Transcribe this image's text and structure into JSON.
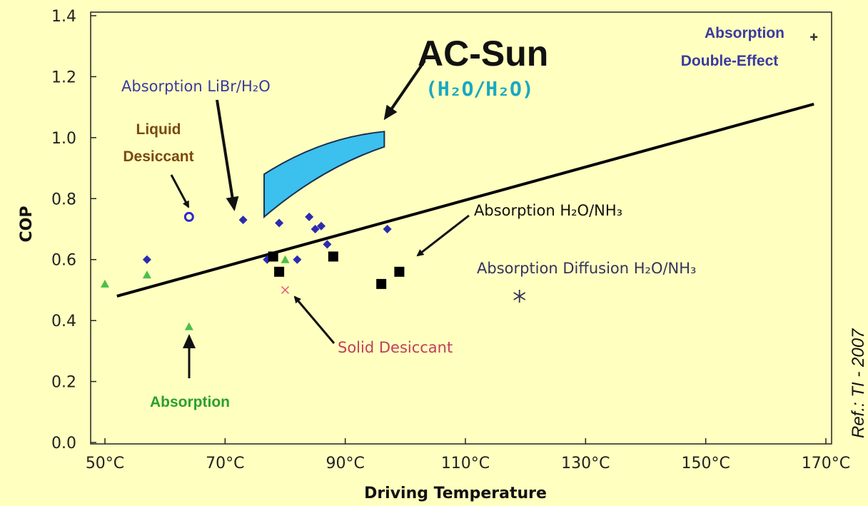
{
  "chart_data": {
    "type": "scatter",
    "xlabel": "Driving Temperature",
    "ylabel": "COP",
    "xlim": [
      45,
      175
    ],
    "ylim": [
      0,
      1.4
    ],
    "x_ticks": [
      "50°C",
      "70°C",
      "90°C",
      "110°C",
      "130°C",
      "150°C",
      "170°C"
    ],
    "y_ticks": [
      "0.0",
      "0.2",
      "0.4",
      "0.6",
      "0.8",
      "1.0",
      "1.2",
      "1.4"
    ],
    "grid": false,
    "trend_line": {
      "x": [
        52,
        168
      ],
      "y": [
        0.48,
        1.11
      ]
    },
    "series": [
      {
        "marker": "diamond",
        "color": "#2b2bb0",
        "x": [
          57,
          73,
          79,
          84,
          85,
          86,
          87,
          97,
          77,
          82
        ],
        "y": [
          0.6,
          0.73,
          0.72,
          0.74,
          0.7,
          0.71,
          0.65,
          0.7,
          0.6,
          0.6
        ]
      },
      {
        "marker": "square",
        "color": "#000000",
        "x": [
          78,
          79,
          88,
          96,
          99
        ],
        "y": [
          0.61,
          0.56,
          0.61,
          0.52,
          0.56
        ]
      },
      {
        "marker": "triangle",
        "color": "#4bbf4b",
        "x": [
          50,
          57,
          64,
          80
        ],
        "y": [
          0.52,
          0.55,
          0.38,
          0.6
        ]
      },
      {
        "marker": "circle-open",
        "color": "#2a2ad0",
        "x": [
          64
        ],
        "y": [
          0.74
        ]
      },
      {
        "marker": "x",
        "color": "#e06070",
        "x": [
          80
        ],
        "y": [
          0.5
        ]
      },
      {
        "marker": "asterisk",
        "color": "#333355",
        "x": [
          119
        ],
        "y": [
          0.48
        ]
      },
      {
        "marker": "plus",
        "color": "#333333",
        "x": [
          168
        ],
        "y": [
          1.33
        ]
      }
    ],
    "region": {
      "name": "AC-Sun",
      "subtitle": "(H2O/H2O)",
      "color": "#3cc0ee"
    },
    "annotations": {
      "ac_sun_title": "AC-Sun",
      "ac_sun_subtitle": "(H₂O/H₂O)",
      "absorption_libr": "Absorption LiBr/H₂O",
      "liquid_desiccant_1": "Liquid",
      "liquid_desiccant_2": "Desiccant",
      "absorption_double_1": "Absorption",
      "absorption_double_2": "Double-Effect",
      "absorption_h2o_nh3": "Absorption H₂O/NH₃",
      "absorption_diffusion": "Absorption Diffusion H₂O/NH₃",
      "solid_desiccant": "Solid Desiccant",
      "absorption_green": "Absorption"
    }
  },
  "reference": "Ref.:  TI - 2007",
  "colors": {
    "background": "#ffffc0",
    "brown_label": "#7a4a10",
    "blue_label": "#3a3aa0",
    "green_label": "#2aa02a",
    "red_label": "#c0405a"
  }
}
